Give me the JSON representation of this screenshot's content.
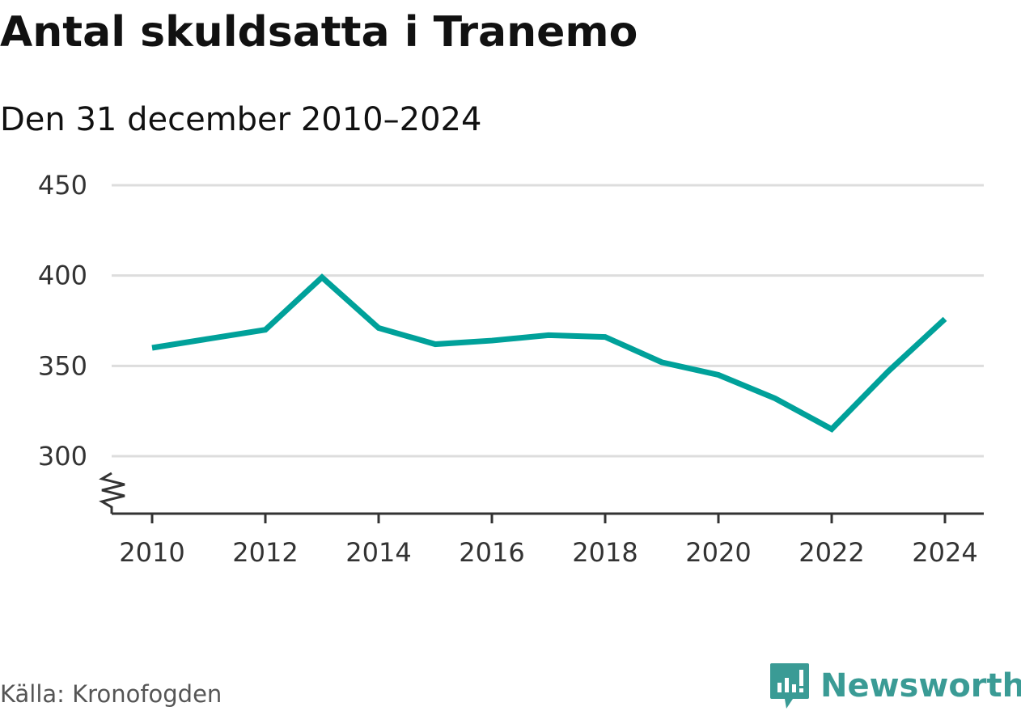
{
  "title": "Antal skuldsatta i Tranemo",
  "subtitle": "Den 31 december 2010–2024",
  "source": "Källa: Kronofogden",
  "brand": {
    "name": "Newsworthy",
    "icon": "newsworthy-logo-icon",
    "color": "#3a9b95"
  },
  "colors": {
    "line": "#00a19a",
    "grid": "#dddddd",
    "axis": "#333333"
  },
  "chart_data": {
    "type": "line",
    "x": [
      2010,
      2011,
      2012,
      2013,
      2014,
      2015,
      2016,
      2017,
      2018,
      2019,
      2020,
      2021,
      2022,
      2023,
      2024
    ],
    "series": [
      {
        "values": [
          360,
          365,
          370,
          399,
          371,
          362,
          364,
          367,
          366,
          352,
          345,
          332,
          315,
          347,
          376
        ]
      }
    ],
    "xticks": [
      2010,
      2012,
      2014,
      2016,
      2018,
      2020,
      2022,
      2024
    ],
    "yticks": [
      300,
      350,
      400,
      450
    ],
    "ylim": [
      300,
      450
    ],
    "y_axis_break": true,
    "grid": "horizontal",
    "xlabel": "",
    "ylabel": ""
  }
}
